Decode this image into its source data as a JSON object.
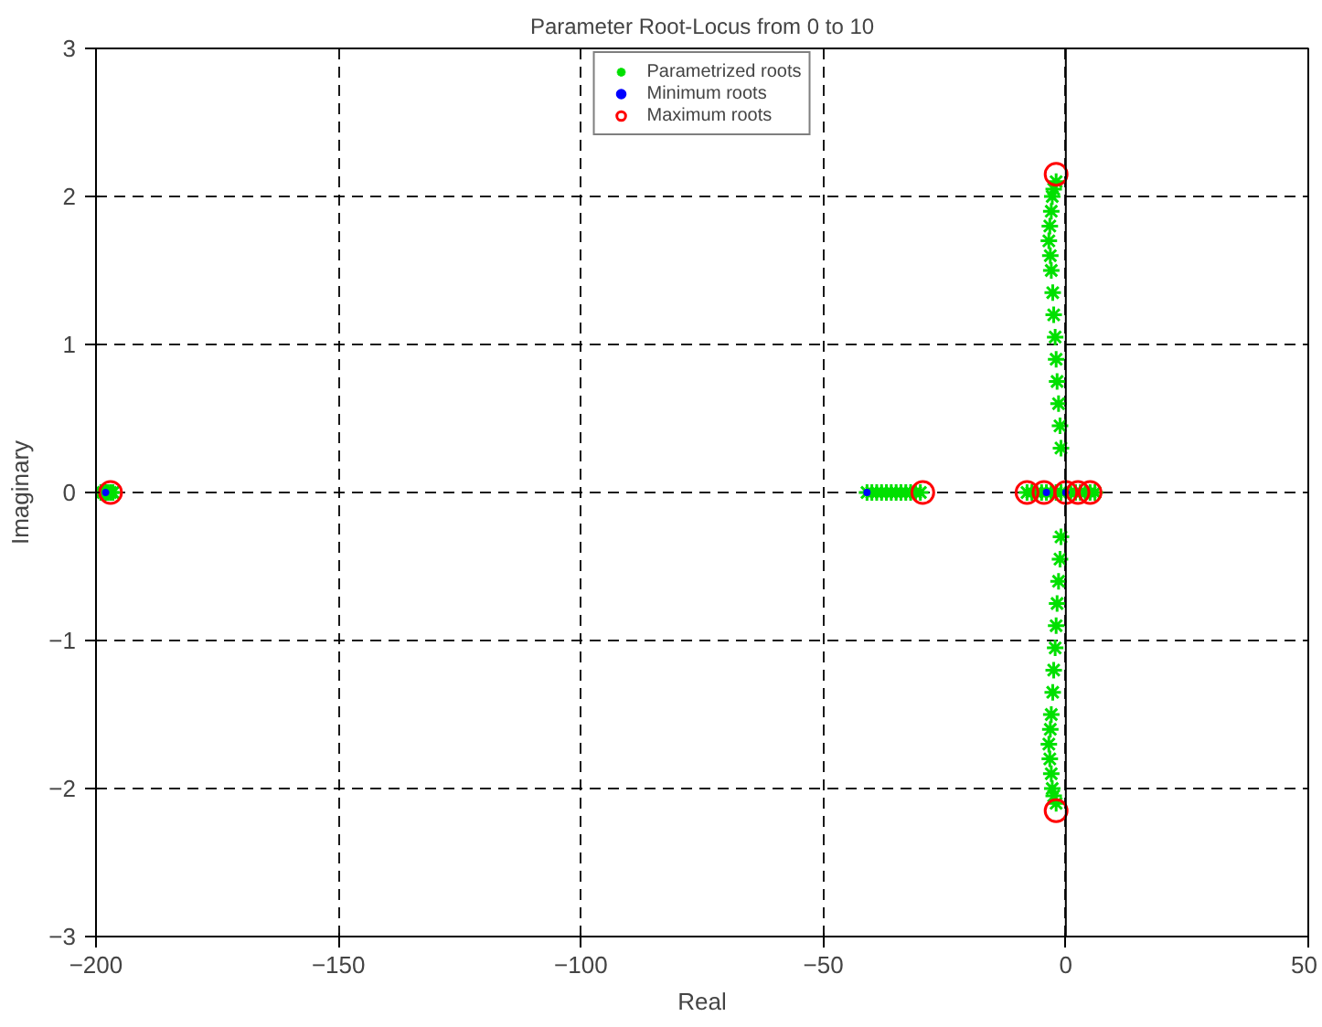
{
  "chart_data": {
    "type": "scatter",
    "title": "Parameter Root-Locus from 0 to 10",
    "xlabel": "Real",
    "ylabel": "Imaginary",
    "xlim": [
      -200,
      50
    ],
    "ylim": [
      -3,
      3
    ],
    "xticks": [
      -200,
      -150,
      -100,
      -50,
      0,
      50
    ],
    "yticks": [
      -3,
      -2,
      -1,
      0,
      1,
      2,
      3
    ],
    "grid": true,
    "legend": "top",
    "ref_lines": [
      {
        "axis": "x",
        "value": 0,
        "color": "#000000",
        "line_style": "solid"
      }
    ],
    "series": [
      {
        "name": "Parametrized roots",
        "color": "#00e000",
        "marker": "cross",
        "x": [
          -199,
          -198.5,
          -198,
          -197.5,
          -197,
          -196.5,
          -41,
          -40,
          -39,
          -38,
          -37,
          -36,
          -35,
          -34,
          -33,
          -32,
          -31,
          -30,
          -8,
          -7,
          -6,
          -5,
          -4,
          -3,
          -2,
          -1,
          1,
          2,
          3,
          4,
          5,
          6,
          -1,
          -1.2,
          -1.5,
          -1.8,
          -2,
          -2.2,
          -2.5,
          -2.7,
          -3,
          -3.2,
          -3.5,
          -3.3,
          -3,
          -2.8,
          -2.5,
          -2,
          -1,
          -1.2,
          -1.5,
          -1.8,
          -2,
          -2.2,
          -2.5,
          -2.7,
          -3,
          -3.2,
          -3.5,
          -3.3,
          -3,
          -2.8,
          -2.5,
          -2
        ],
        "values": [
          0,
          0,
          0,
          0,
          0,
          0,
          0,
          0,
          0,
          0,
          0,
          0,
          0,
          0,
          0,
          0,
          0,
          0,
          0,
          0,
          0,
          0,
          0,
          0,
          0,
          0,
          0,
          0,
          0,
          0,
          0,
          0,
          0.3,
          0.45,
          0.6,
          0.75,
          0.9,
          1.05,
          1.2,
          1.35,
          1.5,
          1.6,
          1.7,
          1.8,
          1.9,
          2.0,
          2.05,
          2.1,
          -0.3,
          -0.45,
          -0.6,
          -0.75,
          -0.9,
          -1.05,
          -1.2,
          -1.35,
          -1.5,
          -1.6,
          -1.7,
          -1.8,
          -1.9,
          -2.0,
          -2.05,
          -2.1
        ]
      },
      {
        "name": "Minimum roots",
        "color": "#0000ff",
        "marker": "circle",
        "x": [
          -198,
          -41,
          -4,
          0
        ],
        "values": [
          0,
          0,
          0,
          0
        ]
      },
      {
        "name": "Maximum roots",
        "color": "#ff0000",
        "marker": "circle_open",
        "x": [
          -197,
          -29.5,
          -2,
          -2,
          -8,
          -4.5,
          0,
          2.5,
          5
        ],
        "values": [
          0,
          0,
          2.15,
          -2.15,
          0,
          0,
          0,
          0,
          0
        ]
      }
    ]
  }
}
